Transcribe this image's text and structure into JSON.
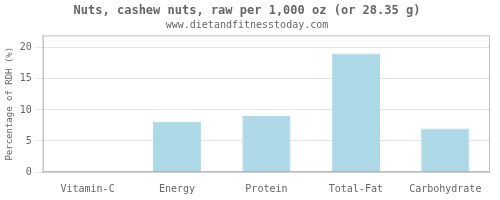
{
  "chart_data": {
    "type": "bar",
    "title": "Nuts, cashew nuts, raw per 1,000 oz (or 28.35 g)",
    "subtitle": "www.dietandfitnesstoday.com",
    "categories": [
      "Vitamin-C",
      "Energy",
      "Protein",
      "Total-Fat",
      "Carbohydrate"
    ],
    "values": [
      0,
      8.1,
      9.0,
      19.1,
      7.0
    ],
    "color": "#add8e6",
    "ylabel": "Percentage of RDH (%)",
    "ylim": [
      0,
      22
    ],
    "yticks": [
      0,
      5,
      10,
      15,
      20
    ],
    "grid": true
  }
}
